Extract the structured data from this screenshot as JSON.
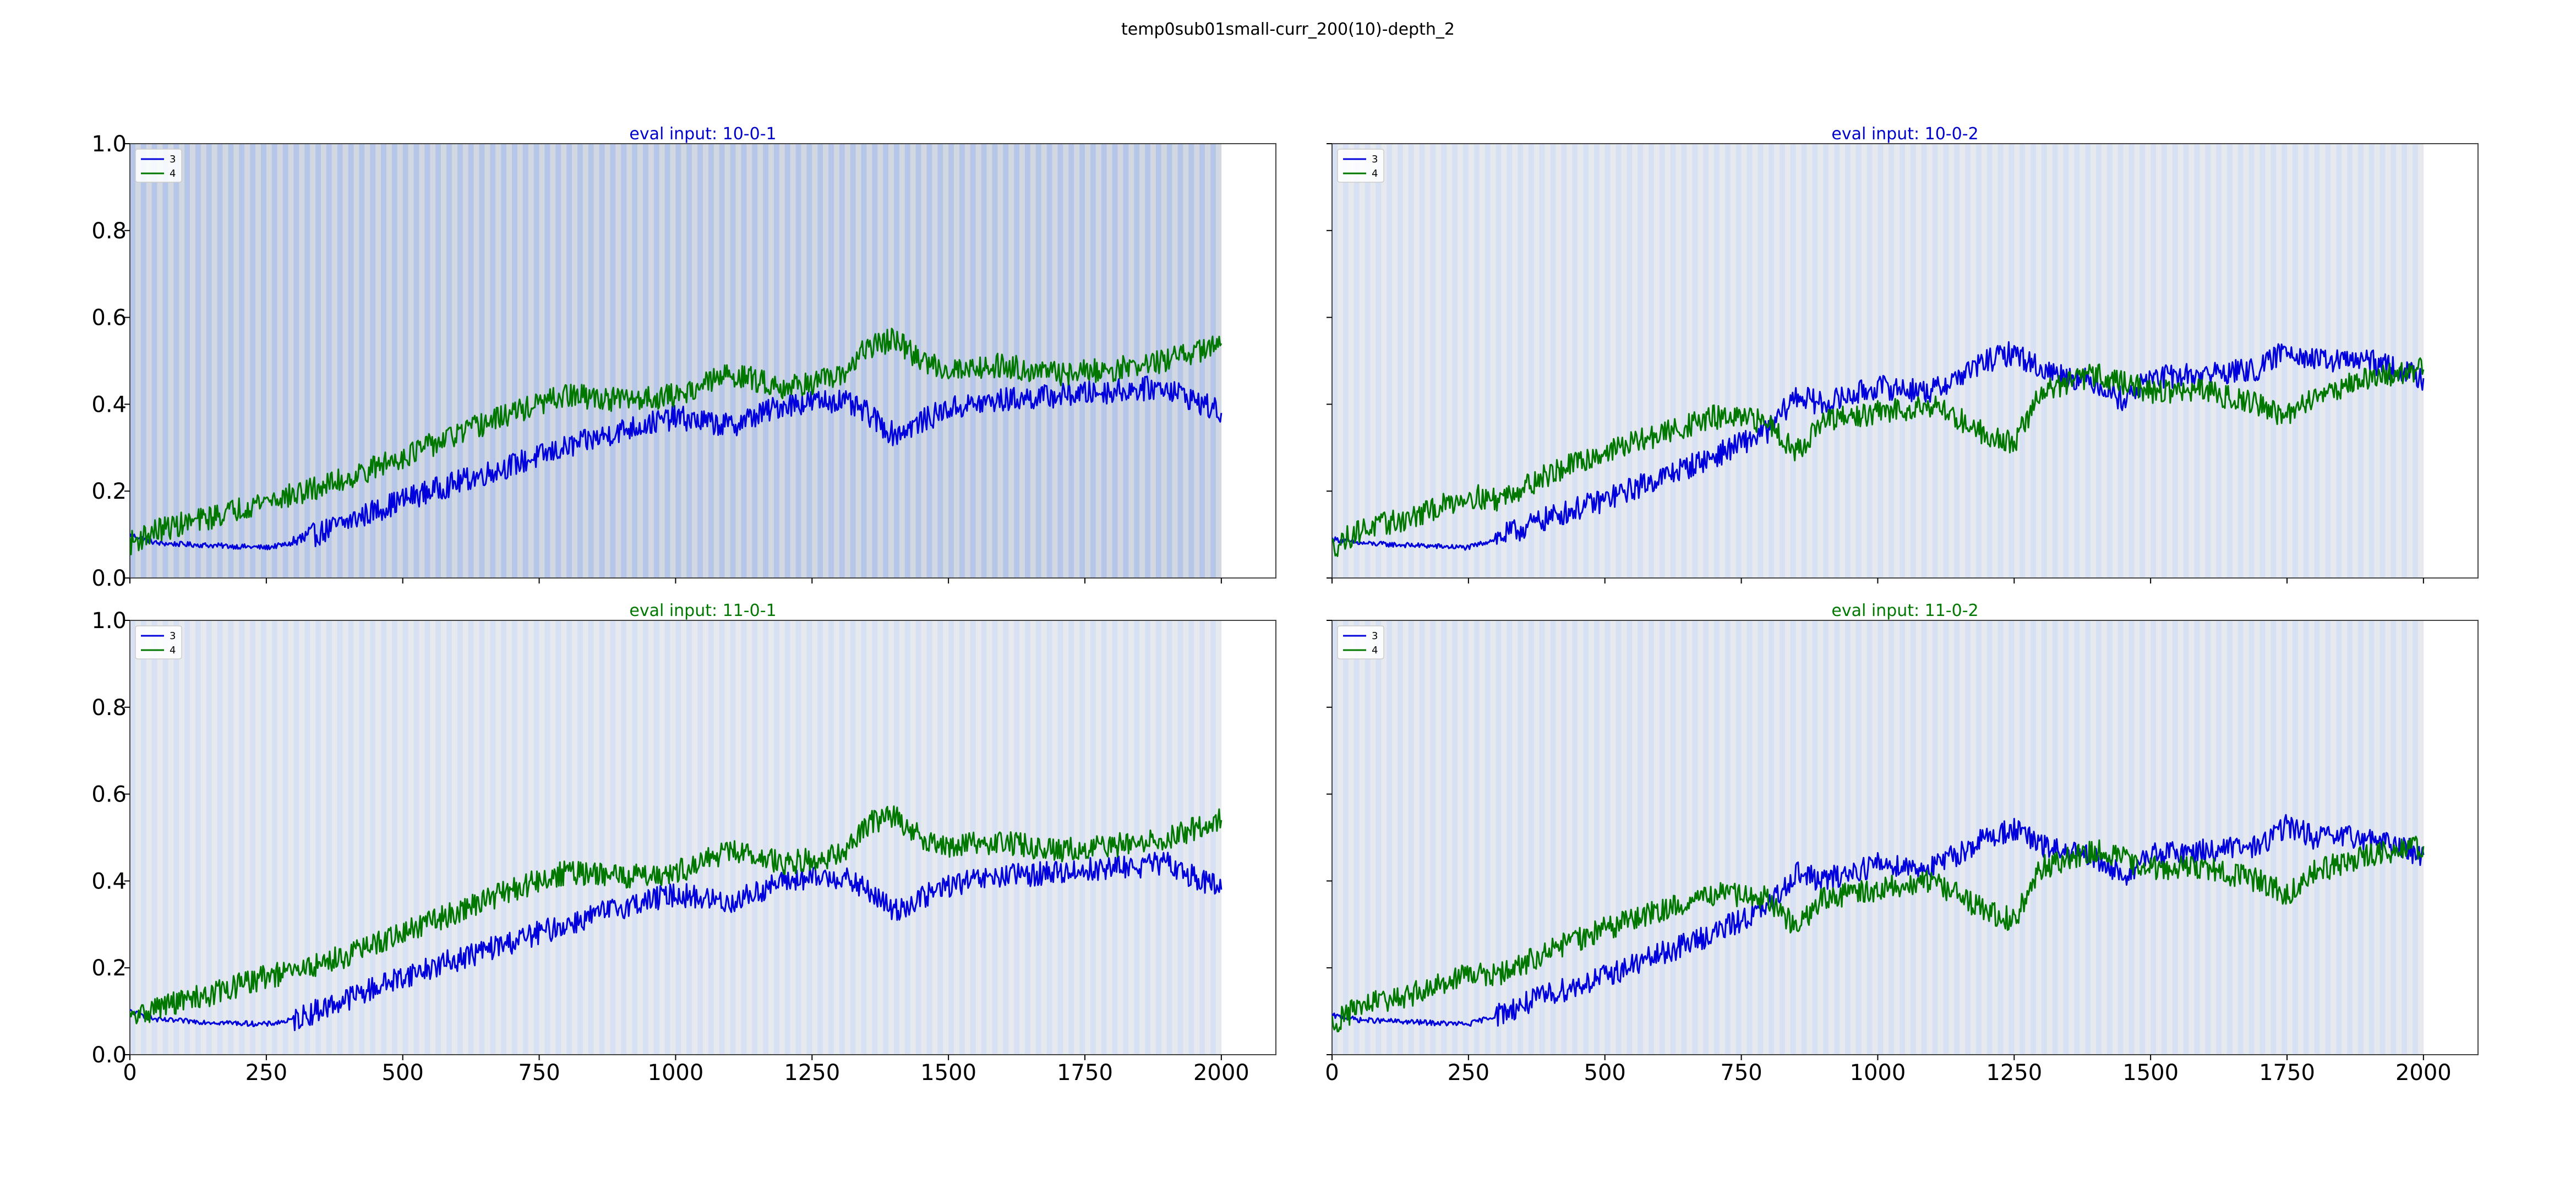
{
  "figure": {
    "title": "temp0sub01small-curr_200(10)-depth_2"
  },
  "colors": {
    "series_3": "#0000dd",
    "series_4": "#007800",
    "band_blue": "#aabde6",
    "band_gray": "#c9d2dc"
  },
  "chart_data": [
    {
      "type": "line",
      "title": "eval input: 10-0-1",
      "title_color": "#0000cc",
      "xlim": [
        0,
        2100
      ],
      "ylim": [
        0.0,
        1.0
      ],
      "xticks": [
        "0",
        "250",
        "500",
        "750",
        "1000",
        "1250",
        "1500",
        "1750",
        "2000"
      ],
      "yticks": [
        "0.0",
        "0.2",
        "0.4",
        "0.6",
        "0.8",
        "1.0"
      ],
      "show_x_ticklabels": false,
      "show_y_ticklabels": true,
      "background": "shaded vertical bands (light blue / light gray) spanning x 0–2000",
      "legend": "upper left",
      "series": [
        {
          "name": "3",
          "color": "#0000dd",
          "x": [
            0,
            50,
            150,
            250,
            300,
            400,
            500,
            600,
            700,
            800,
            900,
            1000,
            1100,
            1200,
            1300,
            1350,
            1400,
            1450,
            1500,
            1600,
            1700,
            1800,
            1900,
            2000
          ],
          "y": [
            0.1,
            0.08,
            0.075,
            0.07,
            0.08,
            0.13,
            0.18,
            0.22,
            0.26,
            0.3,
            0.34,
            0.37,
            0.35,
            0.4,
            0.41,
            0.38,
            0.33,
            0.36,
            0.39,
            0.41,
            0.42,
            0.43,
            0.44,
            0.38
          ]
        },
        {
          "name": "4",
          "color": "#007800",
          "x": [
            0,
            50,
            150,
            250,
            300,
            400,
            500,
            600,
            700,
            800,
            900,
            1000,
            1100,
            1200,
            1300,
            1350,
            1400,
            1450,
            1500,
            1600,
            1700,
            1800,
            1900,
            2000
          ],
          "y": [
            0.08,
            0.11,
            0.14,
            0.18,
            0.19,
            0.23,
            0.28,
            0.33,
            0.38,
            0.42,
            0.41,
            0.42,
            0.47,
            0.44,
            0.46,
            0.53,
            0.55,
            0.5,
            0.48,
            0.49,
            0.47,
            0.48,
            0.5,
            0.54
          ]
        }
      ]
    },
    {
      "type": "line",
      "title": "eval input: 10-0-2",
      "title_color": "#0000cc",
      "xlim": [
        0,
        2100
      ],
      "ylim": [
        0.0,
        1.0
      ],
      "xticks": [
        "0",
        "250",
        "500",
        "750",
        "1000",
        "1250",
        "1500",
        "1750",
        "2000"
      ],
      "yticks": [
        "0.0",
        "0.2",
        "0.4",
        "0.6",
        "0.8",
        "1.0"
      ],
      "show_x_ticklabels": false,
      "show_y_ticklabels": false,
      "background": "shaded vertical bands (light blue / light gray) spanning x 0–2000",
      "legend": "upper left",
      "series": [
        {
          "name": "3",
          "color": "#0000dd",
          "x": [
            0,
            50,
            150,
            250,
            300,
            400,
            500,
            600,
            700,
            800,
            850,
            900,
            1000,
            1100,
            1200,
            1250,
            1300,
            1400,
            1450,
            1500,
            1600,
            1700,
            1750,
            1800,
            1900,
            2000
          ],
          "y": [
            0.09,
            0.08,
            0.075,
            0.07,
            0.09,
            0.14,
            0.18,
            0.23,
            0.28,
            0.34,
            0.42,
            0.4,
            0.44,
            0.43,
            0.5,
            0.52,
            0.48,
            0.45,
            0.41,
            0.46,
            0.47,
            0.48,
            0.53,
            0.5,
            0.5,
            0.46
          ]
        },
        {
          "name": "4",
          "color": "#007800",
          "x": [
            0,
            50,
            150,
            250,
            300,
            400,
            500,
            600,
            700,
            800,
            850,
            900,
            1000,
            1100,
            1200,
            1250,
            1300,
            1400,
            1450,
            1500,
            1600,
            1700,
            1750,
            1800,
            1900,
            2000
          ],
          "y": [
            0.07,
            0.11,
            0.14,
            0.19,
            0.18,
            0.24,
            0.29,
            0.33,
            0.37,
            0.36,
            0.29,
            0.36,
            0.38,
            0.4,
            0.33,
            0.31,
            0.43,
            0.47,
            0.45,
            0.43,
            0.43,
            0.4,
            0.37,
            0.42,
            0.46,
            0.48
          ]
        }
      ]
    },
    {
      "type": "line",
      "title": "eval input: 11-0-1",
      "title_color": "#007800",
      "xlim": [
        0,
        2100
      ],
      "ylim": [
        0.0,
        1.0
      ],
      "xticks": [
        "0",
        "250",
        "500",
        "750",
        "1000",
        "1250",
        "1500",
        "1750",
        "2000"
      ],
      "yticks": [
        "0.0",
        "0.2",
        "0.4",
        "0.6",
        "0.8",
        "1.0"
      ],
      "show_x_ticklabels": true,
      "show_y_ticklabels": true,
      "background": "shaded vertical bands (light blue / light gray) spanning x 0–2000",
      "legend": "upper left",
      "series": [
        {
          "name": "3",
          "color": "#0000dd",
          "x": [
            0,
            50,
            150,
            250,
            300,
            400,
            500,
            600,
            700,
            800,
            900,
            1000,
            1100,
            1200,
            1300,
            1350,
            1400,
            1450,
            1500,
            1600,
            1700,
            1800,
            1900,
            2000
          ],
          "y": [
            0.1,
            0.08,
            0.075,
            0.07,
            0.08,
            0.13,
            0.18,
            0.22,
            0.26,
            0.3,
            0.34,
            0.37,
            0.35,
            0.4,
            0.41,
            0.38,
            0.33,
            0.36,
            0.39,
            0.41,
            0.42,
            0.43,
            0.44,
            0.38
          ]
        },
        {
          "name": "4",
          "color": "#007800",
          "x": [
            0,
            50,
            150,
            250,
            300,
            400,
            500,
            600,
            700,
            800,
            900,
            1000,
            1100,
            1200,
            1300,
            1350,
            1400,
            1450,
            1500,
            1600,
            1700,
            1800,
            1900,
            2000
          ],
          "y": [
            0.08,
            0.11,
            0.14,
            0.18,
            0.19,
            0.23,
            0.28,
            0.33,
            0.38,
            0.42,
            0.41,
            0.42,
            0.47,
            0.44,
            0.46,
            0.53,
            0.55,
            0.5,
            0.48,
            0.49,
            0.47,
            0.48,
            0.5,
            0.54
          ]
        }
      ]
    },
    {
      "type": "line",
      "title": "eval input: 11-0-2",
      "title_color": "#007800",
      "xlim": [
        0,
        2100
      ],
      "ylim": [
        0.0,
        1.0
      ],
      "xticks": [
        "0",
        "250",
        "500",
        "750",
        "1000",
        "1250",
        "1500",
        "1750",
        "2000"
      ],
      "yticks": [
        "0.0",
        "0.2",
        "0.4",
        "0.6",
        "0.8",
        "1.0"
      ],
      "show_x_ticklabels": true,
      "show_y_ticklabels": false,
      "background": "shaded vertical bands (light blue / light gray) spanning x 0–2000",
      "legend": "upper left",
      "series": [
        {
          "name": "3",
          "color": "#0000dd",
          "x": [
            0,
            50,
            150,
            250,
            300,
            400,
            500,
            600,
            700,
            800,
            850,
            900,
            1000,
            1100,
            1200,
            1250,
            1300,
            1400,
            1450,
            1500,
            1600,
            1700,
            1750,
            1800,
            1900,
            2000
          ],
          "y": [
            0.09,
            0.08,
            0.075,
            0.07,
            0.09,
            0.14,
            0.18,
            0.23,
            0.28,
            0.34,
            0.42,
            0.4,
            0.44,
            0.43,
            0.5,
            0.52,
            0.48,
            0.45,
            0.41,
            0.46,
            0.47,
            0.48,
            0.53,
            0.5,
            0.5,
            0.46
          ]
        },
        {
          "name": "4",
          "color": "#007800",
          "x": [
            0,
            50,
            150,
            250,
            300,
            400,
            500,
            600,
            700,
            800,
            850,
            900,
            1000,
            1100,
            1200,
            1250,
            1300,
            1400,
            1450,
            1500,
            1600,
            1700,
            1750,
            1800,
            1900,
            2000
          ],
          "y": [
            0.07,
            0.11,
            0.14,
            0.19,
            0.18,
            0.24,
            0.29,
            0.33,
            0.37,
            0.36,
            0.29,
            0.36,
            0.38,
            0.4,
            0.33,
            0.31,
            0.43,
            0.47,
            0.45,
            0.43,
            0.43,
            0.4,
            0.37,
            0.42,
            0.46,
            0.48
          ]
        }
      ]
    }
  ]
}
